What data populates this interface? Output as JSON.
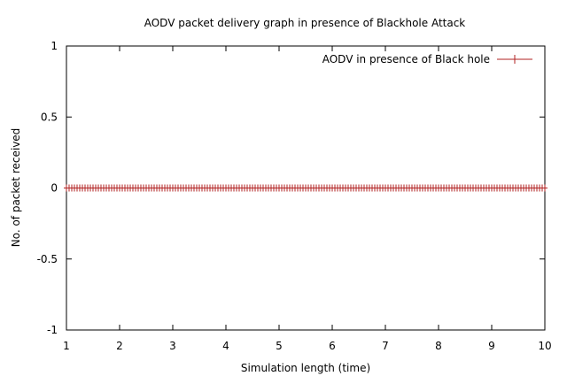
{
  "chart_data": {
    "type": "line",
    "title": "AODV packet delivery graph in presence of Blackhole Attack",
    "xlabel": "Simulation length (time)",
    "ylabel": "No. of packet received",
    "xlim": [
      1,
      10
    ],
    "ylim": [
      -1,
      1
    ],
    "xticks": [
      "1",
      "2",
      "3",
      "4",
      "5",
      "6",
      "7",
      "8",
      "9",
      "10"
    ],
    "yticks": [
      "-1",
      "-0.5",
      "0",
      "0.5",
      "1"
    ],
    "grid": false,
    "legend_position": "top-right",
    "series": [
      {
        "name": "AODV in presence of Black hole",
        "color": "#b22222",
        "marker": "plus",
        "x_start": 1,
        "x_end": 10,
        "x_step": 0.05,
        "y_constant": 0
      }
    ]
  }
}
